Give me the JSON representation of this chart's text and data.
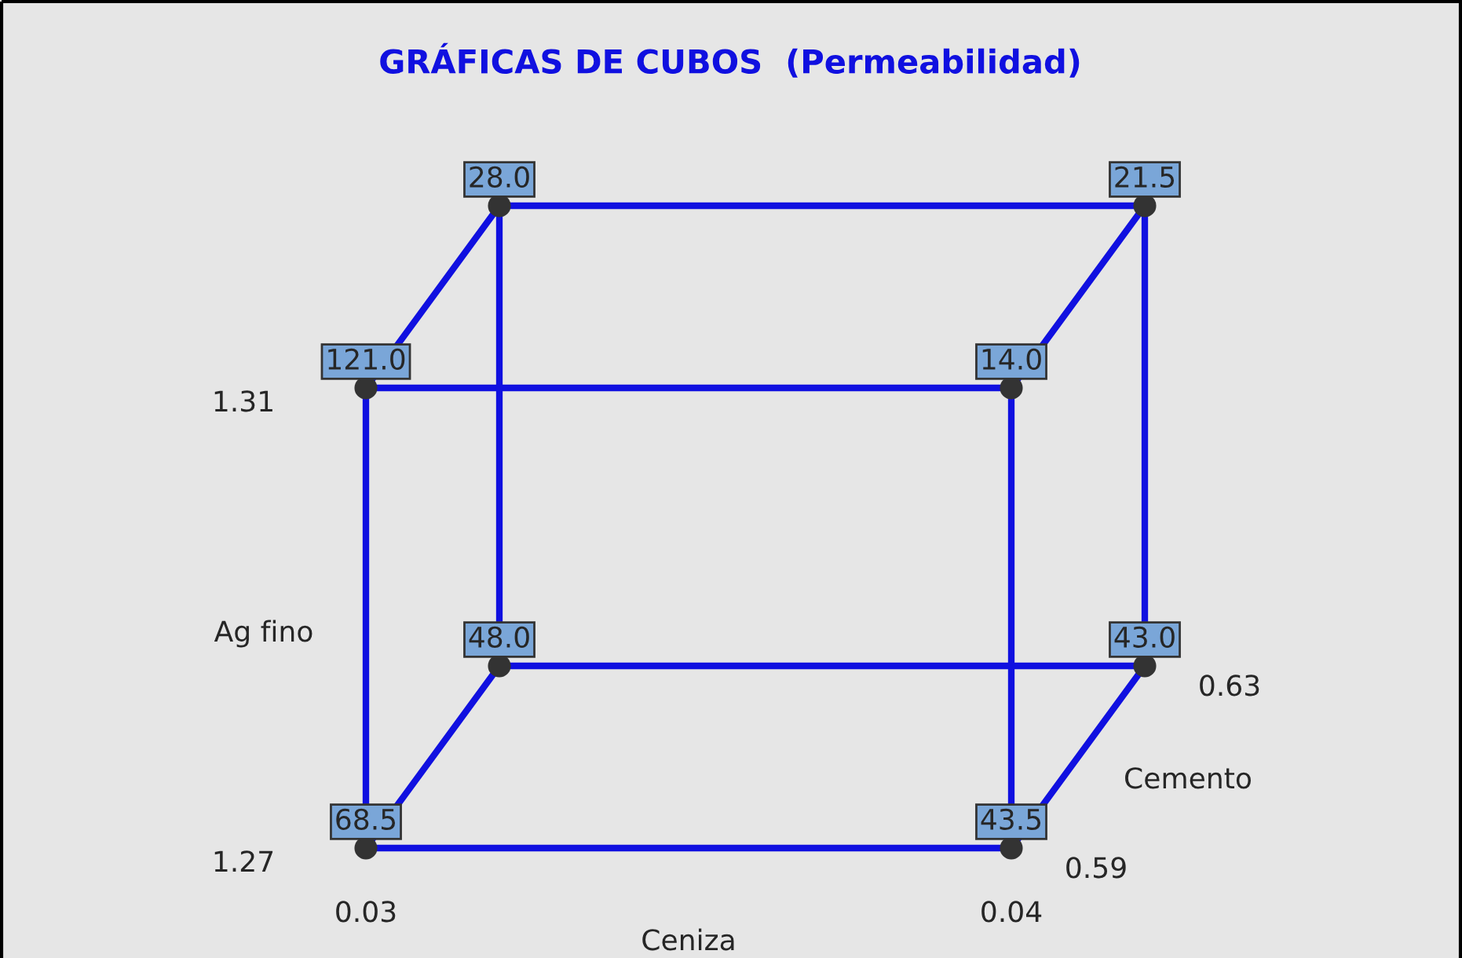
{
  "chart_data": {
    "type": "other",
    "title": "GRÁFICAS DE CUBOS  (Permeabilidad)",
    "xlabel": "Ceniza",
    "ylabel": "Ag fino",
    "x2label": "Cemento",
    "categories": [
      "0.03",
      "0.04"
    ],
    "y_categories": [
      "1.31",
      "1.27"
    ],
    "annotations": [
      "0.59",
      "0.63"
    ],
    "series": [
      {
        "values": [
          121.0,
          14.0
        ],
        "value_labels": [
          "121.0",
          "14.0"
        ]
      },
      {
        "values": [
          68.5,
          43.5
        ],
        "value_labels": [
          "68.5",
          "43.5"
        ]
      },
      {
        "values": [
          28.0,
          21.5
        ],
        "value_labels": [
          "28.0",
          "21.5"
        ]
      },
      {
        "values": [
          48.0,
          43.0
        ],
        "value_labels": [
          "48.0",
          "43.0"
        ]
      }
    ]
  }
}
